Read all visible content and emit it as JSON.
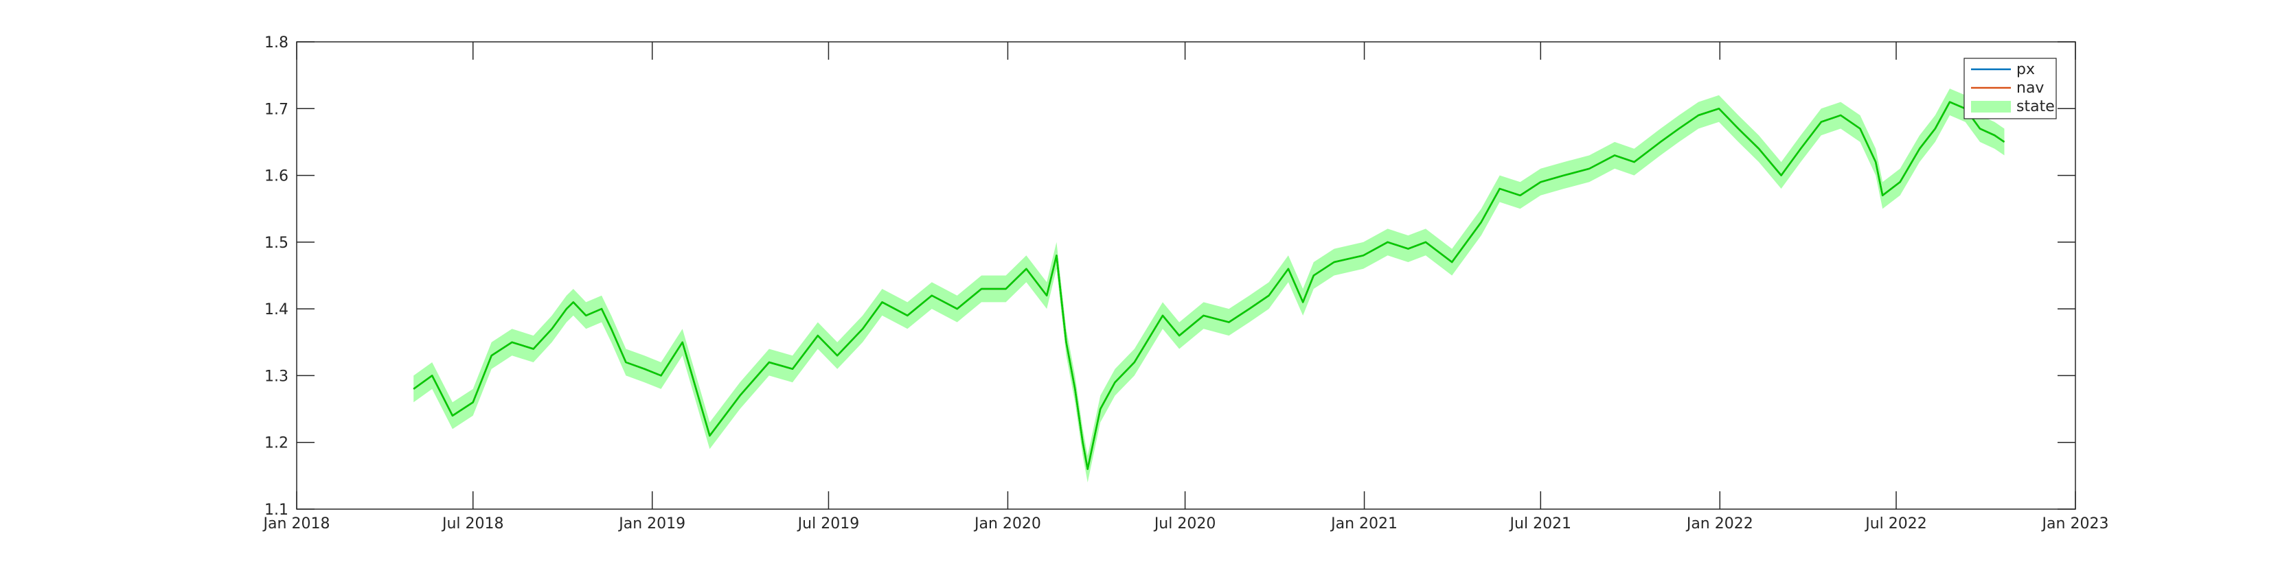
{
  "chart_data": {
    "type": "line",
    "title": "",
    "xlabel": "",
    "ylabel": "",
    "xlim": [
      "2018-01-01",
      "2023-01-01"
    ],
    "ylim": [
      1.1,
      1.8
    ],
    "x_ticks": [
      "2018-01-01",
      "2018-07-01",
      "2019-01-01",
      "2019-07-01",
      "2020-01-01",
      "2020-07-01",
      "2021-01-01",
      "2021-07-01",
      "2022-01-01",
      "2022-07-01",
      "2023-01-01"
    ],
    "x_tick_labels": [
      "Jan 2018",
      "Jul 2018",
      "Jan 2019",
      "Jul 2019",
      "Jan 2020",
      "Jul 2020",
      "Jan 2021",
      "Jul 2021",
      "Jan 2022",
      "Jul 2022",
      "Jan 2023"
    ],
    "y_ticks": [
      1.1,
      1.2,
      1.3,
      1.4,
      1.5,
      1.6,
      1.7,
      1.8
    ],
    "y_tick_labels": [
      "1.1",
      "1.2",
      "1.3",
      "1.4",
      "1.5",
      "1.6",
      "1.7",
      "1.8"
    ],
    "grid": false,
    "legend_position": "top-right",
    "legend": [
      "px",
      "nav",
      "state"
    ],
    "series": [
      {
        "name": "px",
        "color": "#0072BD",
        "x": [
          "2018-05-01",
          "2018-05-20",
          "2018-06-10",
          "2018-07-01",
          "2018-07-20",
          "2018-08-10",
          "2018-09-01",
          "2018-09-20",
          "2018-10-05",
          "2018-10-12",
          "2018-10-25",
          "2018-11-10",
          "2018-11-20",
          "2018-12-05",
          "2018-12-24",
          "2019-01-10",
          "2019-02-01",
          "2019-03-01",
          "2019-04-01",
          "2019-05-01",
          "2019-05-25",
          "2019-06-20",
          "2019-07-10",
          "2019-08-05",
          "2019-08-25",
          "2019-09-20",
          "2019-10-15",
          "2019-11-10",
          "2019-12-05",
          "2019-12-30",
          "2020-01-20",
          "2020-02-10",
          "2020-02-20",
          "2020-03-01",
          "2020-03-10",
          "2020-03-18",
          "2020-03-23",
          "2020-04-05",
          "2020-04-20",
          "2020-05-10",
          "2020-06-08",
          "2020-06-25",
          "2020-07-20",
          "2020-08-15",
          "2020-09-05",
          "2020-09-25",
          "2020-10-15",
          "2020-10-30",
          "2020-11-10",
          "2020-12-01",
          "2020-12-31",
          "2021-01-25",
          "2021-02-15",
          "2021-03-05",
          "2021-04-01",
          "2021-05-01",
          "2021-05-20",
          "2021-06-10",
          "2021-07-01",
          "2021-07-25",
          "2021-08-20",
          "2021-09-15",
          "2021-10-05",
          "2021-11-01",
          "2021-11-20",
          "2021-12-10",
          "2021-12-31",
          "2022-01-20",
          "2022-02-10",
          "2022-03-05",
          "2022-03-25",
          "2022-04-15",
          "2022-05-05",
          "2022-05-25",
          "2022-06-10",
          "2022-06-17",
          "2022-07-05",
          "2022-07-25",
          "2022-08-10",
          "2022-08-25",
          "2022-09-10",
          "2022-09-25",
          "2022-10-10",
          "2022-10-20"
        ],
        "y": [
          1.28,
          1.3,
          1.24,
          1.26,
          1.33,
          1.35,
          1.34,
          1.37,
          1.4,
          1.41,
          1.39,
          1.4,
          1.37,
          1.32,
          1.31,
          1.3,
          1.35,
          1.21,
          1.27,
          1.32,
          1.31,
          1.36,
          1.33,
          1.37,
          1.41,
          1.39,
          1.42,
          1.4,
          1.43,
          1.43,
          1.46,
          1.42,
          1.48,
          1.35,
          1.28,
          1.2,
          1.16,
          1.25,
          1.29,
          1.32,
          1.39,
          1.36,
          1.39,
          1.38,
          1.4,
          1.42,
          1.46,
          1.41,
          1.45,
          1.47,
          1.48,
          1.5,
          1.49,
          1.5,
          1.47,
          1.53,
          1.58,
          1.57,
          1.59,
          1.6,
          1.61,
          1.63,
          1.62,
          1.65,
          1.67,
          1.69,
          1.7,
          1.67,
          1.64,
          1.6,
          1.64,
          1.68,
          1.69,
          1.67,
          1.62,
          1.57,
          1.59,
          1.64,
          1.67,
          1.71,
          1.7,
          1.67,
          1.66,
          1.65
        ]
      },
      {
        "name": "nav",
        "color": "#D95319",
        "x": [
          "2018-05-01",
          "2018-05-20",
          "2018-06-10",
          "2018-07-01",
          "2018-07-20",
          "2018-08-10",
          "2018-09-01",
          "2018-09-20",
          "2018-10-05",
          "2018-10-12",
          "2018-10-25",
          "2018-11-10",
          "2018-11-20",
          "2018-12-05",
          "2018-12-24",
          "2019-01-10",
          "2019-02-01",
          "2019-03-01",
          "2019-04-01",
          "2019-05-01",
          "2019-05-25",
          "2019-06-20",
          "2019-07-10",
          "2019-08-05",
          "2019-08-25",
          "2019-09-20",
          "2019-10-15",
          "2019-11-10",
          "2019-12-05",
          "2019-12-30",
          "2020-01-20",
          "2020-02-10",
          "2020-02-20",
          "2020-03-01",
          "2020-03-10",
          "2020-03-18",
          "2020-03-23",
          "2020-04-05",
          "2020-04-20",
          "2020-05-10",
          "2020-06-08",
          "2020-06-25",
          "2020-07-20",
          "2020-08-15",
          "2020-09-05",
          "2020-09-25",
          "2020-10-15",
          "2020-10-30",
          "2020-11-10",
          "2020-12-01",
          "2020-12-31",
          "2021-01-25",
          "2021-02-15",
          "2021-03-05",
          "2021-04-01",
          "2021-05-01",
          "2021-05-20",
          "2021-06-10",
          "2021-07-01",
          "2021-07-25",
          "2021-08-20",
          "2021-09-15",
          "2021-10-05",
          "2021-11-01",
          "2021-11-20",
          "2021-12-10",
          "2021-12-31",
          "2022-01-20",
          "2022-02-10",
          "2022-03-05",
          "2022-03-25",
          "2022-04-15",
          "2022-05-05",
          "2022-05-25",
          "2022-06-10",
          "2022-06-17",
          "2022-07-05",
          "2022-07-25",
          "2022-08-10",
          "2022-08-25",
          "2022-09-10",
          "2022-09-25",
          "2022-10-10",
          "2022-10-20"
        ],
        "y": [
          1.28,
          1.3,
          1.24,
          1.26,
          1.33,
          1.35,
          1.34,
          1.37,
          1.4,
          1.41,
          1.39,
          1.4,
          1.37,
          1.32,
          1.31,
          1.3,
          1.35,
          1.21,
          1.27,
          1.32,
          1.31,
          1.36,
          1.33,
          1.37,
          1.41,
          1.39,
          1.42,
          1.4,
          1.43,
          1.43,
          1.46,
          1.42,
          1.48,
          1.35,
          1.28,
          1.2,
          1.16,
          1.25,
          1.29,
          1.32,
          1.39,
          1.36,
          1.39,
          1.38,
          1.4,
          1.42,
          1.46,
          1.41,
          1.45,
          1.47,
          1.48,
          1.5,
          1.49,
          1.5,
          1.47,
          1.53,
          1.58,
          1.57,
          1.59,
          1.6,
          1.61,
          1.63,
          1.62,
          1.65,
          1.67,
          1.69,
          1.7,
          1.67,
          1.64,
          1.6,
          1.64,
          1.68,
          1.69,
          1.67,
          1.62,
          1.57,
          1.59,
          1.64,
          1.67,
          1.71,
          1.7,
          1.67,
          1.66,
          1.65
        ]
      },
      {
        "name": "state",
        "color": "#00CC00",
        "band_color": "#AAFFAA",
        "band_halfwidth": 0.02,
        "x": [
          "2018-05-01",
          "2018-05-20",
          "2018-06-10",
          "2018-07-01",
          "2018-07-20",
          "2018-08-10",
          "2018-09-01",
          "2018-09-20",
          "2018-10-05",
          "2018-10-12",
          "2018-10-25",
          "2018-11-10",
          "2018-11-20",
          "2018-12-05",
          "2018-12-24",
          "2019-01-10",
          "2019-02-01",
          "2019-03-01",
          "2019-04-01",
          "2019-05-01",
          "2019-05-25",
          "2019-06-20",
          "2019-07-10",
          "2019-08-05",
          "2019-08-25",
          "2019-09-20",
          "2019-10-15",
          "2019-11-10",
          "2019-12-05",
          "2019-12-30",
          "2020-01-20",
          "2020-02-10",
          "2020-02-20",
          "2020-03-01",
          "2020-03-10",
          "2020-03-18",
          "2020-03-23",
          "2020-04-05",
          "2020-04-20",
          "2020-05-10",
          "2020-06-08",
          "2020-06-25",
          "2020-07-20",
          "2020-08-15",
          "2020-09-05",
          "2020-09-25",
          "2020-10-15",
          "2020-10-30",
          "2020-11-10",
          "2020-12-01",
          "2020-12-31",
          "2021-01-25",
          "2021-02-15",
          "2021-03-05",
          "2021-04-01",
          "2021-05-01",
          "2021-05-20",
          "2021-06-10",
          "2021-07-01",
          "2021-07-25",
          "2021-08-20",
          "2021-09-15",
          "2021-10-05",
          "2021-11-01",
          "2021-11-20",
          "2021-12-10",
          "2021-12-31",
          "2022-01-20",
          "2022-02-10",
          "2022-03-05",
          "2022-03-25",
          "2022-04-15",
          "2022-05-05",
          "2022-05-25",
          "2022-06-10",
          "2022-06-17",
          "2022-07-05",
          "2022-07-25",
          "2022-08-10",
          "2022-08-25",
          "2022-09-10",
          "2022-09-25",
          "2022-10-10",
          "2022-10-20"
        ],
        "y": [
          1.28,
          1.3,
          1.24,
          1.26,
          1.33,
          1.35,
          1.34,
          1.37,
          1.4,
          1.41,
          1.39,
          1.4,
          1.37,
          1.32,
          1.31,
          1.3,
          1.35,
          1.21,
          1.27,
          1.32,
          1.31,
          1.36,
          1.33,
          1.37,
          1.41,
          1.39,
          1.42,
          1.4,
          1.43,
          1.43,
          1.46,
          1.42,
          1.48,
          1.35,
          1.28,
          1.2,
          1.16,
          1.25,
          1.29,
          1.32,
          1.39,
          1.36,
          1.39,
          1.38,
          1.4,
          1.42,
          1.46,
          1.41,
          1.45,
          1.47,
          1.48,
          1.5,
          1.49,
          1.5,
          1.47,
          1.53,
          1.58,
          1.57,
          1.59,
          1.6,
          1.61,
          1.63,
          1.62,
          1.65,
          1.67,
          1.69,
          1.7,
          1.67,
          1.64,
          1.6,
          1.64,
          1.68,
          1.69,
          1.67,
          1.62,
          1.57,
          1.59,
          1.64,
          1.67,
          1.71,
          1.7,
          1.67,
          1.66,
          1.65
        ]
      }
    ]
  }
}
